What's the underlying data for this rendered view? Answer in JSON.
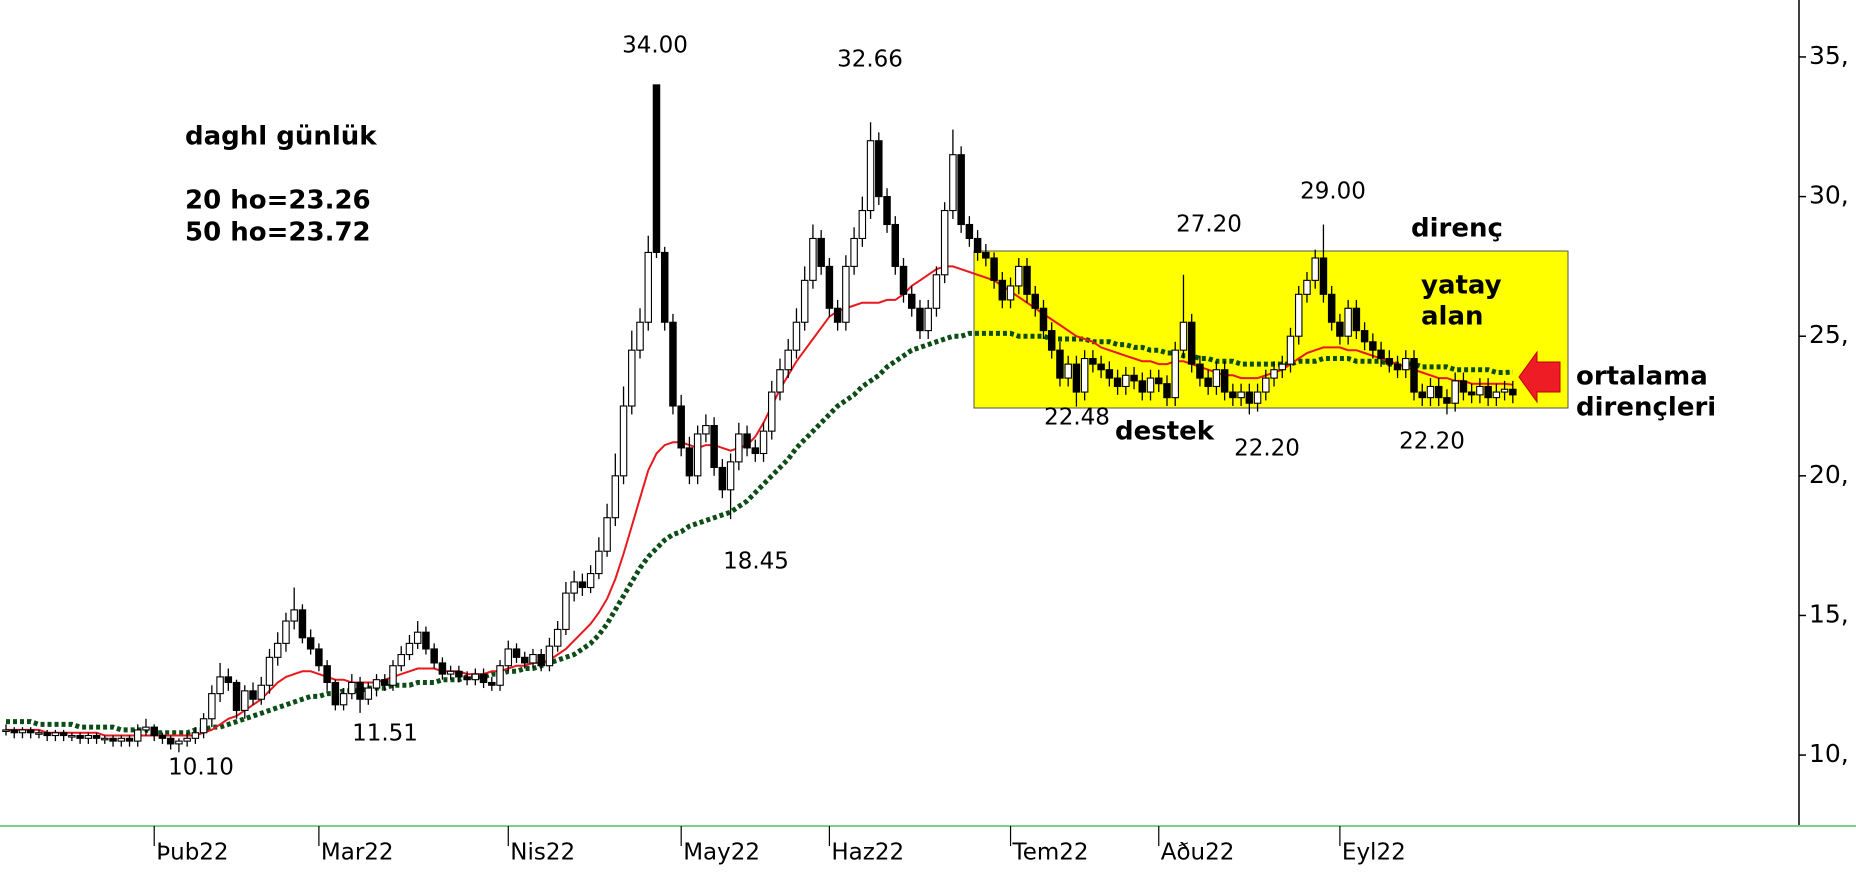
{
  "chart_data": {
    "type": "candlestick",
    "categories": [
      null,
      null,
      null,
      null,
      null,
      null,
      null,
      null,
      null,
      null,
      null,
      null,
      null,
      null,
      null,
      null,
      null,
      null,
      "Þub22",
      null,
      null,
      null,
      null,
      null,
      null,
      null,
      null,
      null,
      null,
      null,
      null,
      null,
      null,
      null,
      null,
      null,
      null,
      null,
      "Mar22",
      null,
      null,
      null,
      null,
      null,
      null,
      null,
      null,
      null,
      null,
      null,
      null,
      null,
      null,
      null,
      null,
      null,
      null,
      null,
      null,
      null,
      null,
      "Nis22",
      null,
      null,
      null,
      null,
      null,
      null,
      null,
      null,
      null,
      null,
      null,
      null,
      null,
      null,
      null,
      null,
      null,
      null,
      null,
      null,
      "May22",
      null,
      null,
      null,
      null,
      null,
      null,
      null,
      null,
      null,
      null,
      null,
      null,
      null,
      null,
      null,
      null,
      null,
      "Haz22",
      null,
      null,
      null,
      null,
      null,
      null,
      null,
      null,
      null,
      null,
      null,
      null,
      null,
      null,
      null,
      null,
      null,
      null,
      null,
      null,
      null,
      "Tem22",
      null,
      null,
      null,
      null,
      null,
      null,
      null,
      null,
      null,
      null,
      null,
      null,
      null,
      null,
      null,
      null,
      null,
      "Aðu22",
      null,
      null,
      null,
      null,
      null,
      null,
      null,
      null,
      null,
      null,
      null,
      null,
      null,
      null,
      null,
      null,
      null,
      null,
      null,
      null,
      null,
      "Eyl22",
      null,
      null,
      null,
      null,
      null,
      null,
      null,
      null,
      null,
      null,
      null,
      null,
      null,
      null,
      null,
      null,
      null,
      null,
      null,
      null,
      null
    ],
    "open": [
      10.9,
      10.9,
      10.8,
      10.9,
      10.8,
      10.8,
      10.7,
      10.8,
      10.7,
      10.7,
      10.6,
      10.7,
      10.6,
      10.6,
      10.5,
      10.6,
      10.5,
      10.9,
      11.0,
      10.7,
      10.6,
      10.4,
      10.5,
      10.6,
      10.8,
      11.3,
      12.2,
      12.8,
      12.6,
      11.6,
      12.3,
      12.0,
      12.5,
      13.5,
      14.0,
      14.8,
      15.2,
      14.2,
      13.8,
      13.2,
      12.6,
      11.8,
      12.2,
      12.6,
      12.0,
      12.4,
      12.7,
      12.5,
      13.2,
      13.6,
      14.0,
      14.4,
      13.8,
      13.3,
      12.9,
      13.0,
      12.8,
      12.7,
      12.9,
      12.6,
      12.5,
      13.2,
      13.8,
      13.5,
      13.3,
      13.6,
      13.2,
      13.9,
      14.5,
      15.8,
      16.2,
      16.0,
      16.5,
      17.3,
      18.5,
      20.0,
      22.5,
      24.5,
      25.5,
      34.0,
      28.0,
      25.5,
      22.5,
      21.0,
      20.0,
      21.5,
      21.8,
      20.3,
      19.5,
      20.5,
      21.5,
      21.0,
      20.8,
      21.6,
      23.0,
      23.8,
      24.5,
      25.5,
      27.0,
      28.5,
      27.5,
      26.0,
      25.5,
      27.5,
      28.5,
      29.5,
      32.0,
      30.0,
      29.0,
      27.5,
      26.5,
      26.0,
      25.2,
      26.0,
      27.2,
      29.5,
      31.5,
      29.0,
      28.5,
      28.0,
      27.8,
      27.0,
      26.3,
      26.8,
      27.5,
      26.5,
      26.0,
      25.2,
      24.5,
      23.5,
      24.0,
      23.0,
      24.2,
      24.0,
      23.8,
      23.5,
      23.2,
      23.6,
      23.4,
      23.0,
      23.5,
      23.3,
      22.8,
      24.5,
      25.5,
      24.0,
      23.5,
      23.2,
      23.8,
      23.0,
      22.8,
      23.0,
      22.6,
      23.0,
      23.5,
      23.8,
      24.0,
      25.0,
      26.5,
      27.0,
      27.8,
      26.5,
      25.5,
      25.0,
      26.0,
      25.2,
      24.8,
      24.5,
      24.2,
      24.0,
      23.8,
      24.2,
      23.0,
      22.8,
      23.2,
      22.8,
      22.6,
      23.4,
      23.0,
      22.9,
      23.2,
      22.8,
      23.0,
      23.1
    ],
    "high": [
      11.1,
      11.0,
      11.0,
      11.0,
      10.9,
      10.9,
      10.9,
      10.9,
      10.8,
      10.8,
      10.8,
      10.8,
      10.7,
      10.7,
      10.7,
      10.7,
      11.1,
      11.3,
      11.1,
      10.8,
      10.7,
      10.6,
      10.8,
      11.0,
      11.5,
      12.5,
      13.3,
      13.1,
      12.7,
      12.5,
      12.6,
      12.8,
      13.8,
      14.4,
      15.1,
      16.0,
      15.4,
      14.5,
      14.0,
      13.4,
      12.7,
      12.4,
      12.9,
      12.8,
      12.6,
      12.9,
      12.9,
      13.4,
      13.9,
      14.3,
      14.8,
      14.6,
      14.0,
      13.5,
      13.2,
      13.2,
      13.0,
      13.1,
      13.1,
      12.8,
      13.4,
      14.1,
      14.0,
      13.7,
      13.8,
      13.8,
      14.2,
      14.8,
      16.2,
      16.6,
      16.5,
      16.8,
      17.8,
      19.0,
      20.8,
      23.2,
      25.2,
      26.0,
      28.6,
      34.0,
      28.2,
      25.8,
      22.9,
      21.4,
      21.8,
      22.2,
      22.1,
      20.6,
      20.8,
      21.9,
      21.8,
      21.3,
      21.9,
      23.4,
      24.2,
      24.9,
      26.0,
      27.5,
      29.0,
      28.8,
      27.8,
      26.3,
      27.9,
      28.9,
      30.0,
      32.66,
      32.3,
      30.3,
      29.3,
      27.8,
      26.8,
      26.3,
      26.3,
      27.5,
      29.8,
      32.4,
      31.8,
      29.3,
      28.8,
      28.3,
      28.0,
      27.3,
      27.1,
      27.8,
      27.8,
      26.8,
      26.3,
      25.5,
      24.8,
      24.3,
      24.3,
      24.5,
      24.5,
      24.3,
      24.1,
      23.8,
      23.9,
      23.9,
      23.7,
      23.8,
      23.8,
      23.6,
      24.8,
      27.2,
      25.8,
      24.3,
      23.8,
      24.1,
      24.1,
      23.3,
      23.3,
      23.3,
      23.3,
      23.8,
      24.1,
      24.3,
      25.3,
      26.8,
      27.3,
      28.1,
      29.0,
      26.8,
      25.8,
      26.3,
      26.3,
      25.5,
      25.1,
      24.8,
      24.5,
      24.3,
      24.5,
      24.5,
      23.3,
      23.5,
      23.5,
      23.1,
      23.7,
      23.7,
      23.3,
      23.5,
      23.5,
      23.3,
      23.4,
      23.4
    ],
    "low": [
      10.7,
      10.6,
      10.6,
      10.6,
      10.6,
      10.5,
      10.5,
      10.5,
      10.5,
      10.4,
      10.4,
      10.4,
      10.4,
      10.3,
      10.3,
      10.3,
      10.3,
      10.7,
      10.5,
      10.4,
      10.2,
      10.1,
      10.3,
      10.4,
      10.6,
      11.0,
      11.9,
      12.3,
      11.3,
      11.3,
      11.8,
      11.8,
      12.2,
      13.2,
      13.7,
      14.5,
      14.0,
      13.6,
      13.0,
      12.3,
      11.6,
      11.6,
      12.0,
      11.51,
      11.8,
      12.1,
      12.3,
      12.3,
      13.0,
      13.4,
      13.8,
      13.6,
      13.1,
      12.7,
      12.7,
      12.6,
      12.5,
      12.5,
      12.4,
      12.3,
      12.3,
      13.0,
      13.3,
      13.1,
      13.1,
      13.0,
      13.0,
      13.7,
      14.3,
      15.5,
      15.7,
      15.8,
      16.3,
      17.1,
      18.2,
      19.7,
      22.2,
      24.2,
      25.2,
      27.8,
      25.2,
      22.2,
      20.7,
      19.7,
      19.7,
      21.2,
      20.0,
      19.2,
      18.45,
      20.2,
      20.7,
      20.5,
      20.5,
      21.3,
      22.7,
      23.5,
      24.2,
      25.2,
      26.7,
      27.2,
      25.7,
      25.2,
      25.2,
      27.2,
      28.2,
      29.2,
      29.7,
      28.7,
      27.2,
      26.2,
      25.7,
      24.9,
      24.9,
      25.7,
      26.9,
      29.2,
      28.7,
      28.2,
      27.7,
      27.5,
      26.7,
      26.0,
      26.0,
      26.5,
      26.2,
      25.7,
      24.9,
      24.2,
      23.2,
      23.2,
      22.48,
      22.7,
      23.7,
      23.5,
      23.2,
      22.9,
      22.9,
      23.1,
      22.7,
      22.7,
      23.0,
      22.5,
      22.5,
      24.2,
      23.7,
      23.2,
      22.9,
      22.9,
      22.7,
      22.5,
      22.5,
      22.2,
      22.3,
      22.7,
      23.2,
      23.5,
      23.7,
      24.7,
      26.2,
      26.7,
      26.2,
      25.2,
      24.7,
      24.7,
      24.9,
      24.5,
      24.2,
      23.9,
      23.7,
      23.5,
      23.5,
      22.7,
      22.5,
      22.5,
      22.5,
      22.2,
      22.3,
      22.7,
      22.6,
      22.6,
      22.5,
      22.5,
      22.7,
      22.6
    ],
    "close": [
      10.9,
      10.8,
      10.9,
      10.8,
      10.8,
      10.7,
      10.8,
      10.7,
      10.7,
      10.6,
      10.7,
      10.6,
      10.6,
      10.5,
      10.6,
      10.5,
      10.9,
      11.0,
      10.7,
      10.6,
      10.4,
      10.5,
      10.6,
      10.8,
      11.3,
      12.2,
      12.8,
      12.6,
      11.6,
      12.3,
      12.0,
      12.5,
      13.5,
      14.0,
      14.8,
      15.2,
      14.2,
      13.8,
      13.2,
      12.6,
      11.8,
      12.2,
      12.6,
      12.0,
      12.4,
      12.7,
      12.5,
      13.2,
      13.6,
      14.0,
      14.4,
      13.8,
      13.3,
      12.9,
      13.0,
      12.8,
      12.7,
      12.9,
      12.6,
      12.5,
      13.2,
      13.8,
      13.5,
      13.3,
      13.6,
      13.2,
      13.9,
      14.5,
      15.8,
      16.2,
      16.0,
      16.5,
      17.3,
      18.5,
      20.0,
      22.5,
      24.5,
      25.5,
      28.0,
      28.0,
      25.5,
      22.5,
      21.0,
      20.0,
      21.5,
      21.8,
      20.3,
      19.5,
      20.5,
      21.5,
      21.0,
      20.8,
      21.6,
      23.0,
      23.8,
      24.5,
      25.5,
      27.0,
      28.5,
      27.5,
      26.0,
      25.5,
      27.5,
      28.5,
      29.5,
      32.0,
      30.0,
      29.0,
      27.5,
      26.5,
      26.0,
      25.2,
      26.0,
      27.2,
      29.5,
      31.5,
      29.0,
      28.5,
      28.0,
      27.8,
      27.0,
      26.3,
      26.8,
      27.5,
      26.5,
      26.0,
      25.2,
      24.5,
      23.5,
      24.0,
      23.0,
      24.2,
      24.0,
      23.8,
      23.5,
      23.2,
      23.6,
      23.4,
      23.0,
      23.5,
      23.3,
      22.8,
      24.5,
      25.5,
      24.0,
      23.5,
      23.2,
      23.8,
      23.0,
      22.8,
      23.0,
      22.6,
      23.0,
      23.5,
      23.8,
      24.0,
      25.0,
      26.5,
      27.0,
      27.8,
      26.5,
      25.5,
      25.0,
      26.0,
      25.2,
      24.8,
      24.5,
      24.2,
      24.0,
      23.8,
      24.2,
      23.0,
      22.8,
      23.2,
      22.8,
      22.6,
      23.4,
      23.0,
      22.9,
      23.2,
      22.8,
      23.0,
      23.1,
      22.9
    ],
    "lines": [
      {
        "color": "#e8191e",
        "style": "solid",
        "values": [
          10.9,
          10.9,
          10.9,
          10.9,
          10.9,
          10.8,
          10.8,
          10.8,
          10.8,
          10.8,
          10.8,
          10.8,
          10.7,
          10.7,
          10.7,
          10.7,
          10.7,
          10.7,
          10.7,
          10.7,
          10.7,
          10.7,
          10.7,
          10.7,
          10.8,
          10.9,
          11.1,
          11.3,
          11.4,
          11.6,
          11.8,
          12.0,
          12.3,
          12.6,
          12.8,
          12.9,
          13.0,
          13.0,
          12.9,
          12.8,
          12.7,
          12.7,
          12.6,
          12.6,
          12.6,
          12.6,
          12.7,
          12.8,
          12.9,
          13.0,
          13.1,
          13.1,
          13.1,
          13.0,
          13.0,
          13.0,
          12.9,
          12.9,
          12.9,
          13.0,
          13.0,
          13.1,
          13.2,
          13.2,
          13.3,
          13.3,
          13.4,
          13.6,
          13.8,
          14.1,
          14.4,
          14.7,
          15.1,
          15.6,
          16.3,
          17.2,
          18.2,
          19.2,
          20.2,
          20.8,
          21.1,
          21.2,
          21.2,
          21.1,
          21.0,
          21.1,
          21.1,
          21.0,
          20.9,
          21.0,
          21.1,
          21.4,
          21.9,
          22.5,
          23.1,
          23.6,
          24.1,
          24.5,
          24.9,
          25.3,
          25.7,
          25.9,
          26.0,
          26.1,
          26.2,
          26.2,
          26.2,
          26.3,
          26.3,
          26.5,
          26.8,
          27.0,
          27.2,
          27.4,
          27.5,
          27.5,
          27.4,
          27.3,
          27.2,
          27.1,
          27.0,
          26.8,
          26.6,
          26.4,
          26.2,
          26.0,
          25.8,
          25.6,
          25.4,
          25.2,
          25.0,
          24.9,
          24.8,
          24.6,
          24.5,
          24.4,
          24.3,
          24.2,
          24.1,
          24.1,
          24.0,
          24.0,
          24.1,
          24.1,
          24.0,
          23.9,
          23.8,
          23.7,
          23.6,
          23.6,
          23.5,
          23.5,
          23.5,
          23.6,
          23.7,
          23.8,
          24.0,
          24.2,
          24.4,
          24.5,
          24.6,
          24.6,
          24.6,
          24.5,
          24.5,
          24.4,
          24.3,
          24.2,
          24.1,
          24.0,
          23.9,
          23.8,
          23.7,
          23.6,
          23.5,
          23.5,
          23.4,
          23.4,
          23.3,
          23.3,
          23.3,
          23.3,
          23.3,
          23.26
        ]
      },
      {
        "color": "#0b4d16",
        "style": "dotted",
        "values": [
          11.2,
          11.2,
          11.2,
          11.2,
          11.1,
          11.1,
          11.1,
          11.1,
          11.1,
          11.0,
          11.0,
          11.0,
          11.0,
          11.0,
          10.9,
          10.9,
          10.9,
          10.9,
          10.8,
          10.8,
          10.8,
          10.8,
          10.8,
          10.9,
          10.9,
          11.0,
          11.0,
          11.1,
          11.2,
          11.3,
          11.4,
          11.5,
          11.6,
          11.7,
          11.8,
          11.9,
          12.0,
          12.1,
          12.1,
          12.2,
          12.2,
          12.3,
          12.3,
          12.3,
          12.4,
          12.4,
          12.4,
          12.5,
          12.5,
          12.5,
          12.6,
          12.6,
          12.6,
          12.7,
          12.7,
          12.7,
          12.8,
          12.8,
          12.8,
          12.9,
          12.9,
          13.0,
          13.0,
          13.1,
          13.1,
          13.2,
          13.3,
          13.4,
          13.5,
          13.6,
          13.8,
          14.0,
          14.3,
          14.7,
          15.2,
          15.7,
          16.2,
          16.7,
          17.1,
          17.4,
          17.7,
          17.9,
          18.0,
          18.2,
          18.3,
          18.4,
          18.5,
          18.6,
          18.7,
          18.9,
          19.1,
          19.4,
          19.7,
          20.0,
          20.3,
          20.6,
          21.0,
          21.3,
          21.6,
          21.9,
          22.2,
          22.5,
          22.7,
          22.9,
          23.2,
          23.4,
          23.6,
          23.9,
          24.1,
          24.3,
          24.5,
          24.6,
          24.7,
          24.8,
          24.9,
          25.0,
          25.0,
          25.1,
          25.1,
          25.1,
          25.1,
          25.1,
          25.1,
          25.0,
          25.0,
          25.0,
          25.0,
          24.9,
          24.9,
          24.9,
          24.9,
          24.9,
          24.8,
          24.8,
          24.8,
          24.7,
          24.7,
          24.6,
          24.6,
          24.5,
          24.5,
          24.4,
          24.4,
          24.3,
          24.3,
          24.2,
          24.2,
          24.1,
          24.1,
          24.1,
          24.0,
          24.0,
          24.0,
          24.0,
          24.0,
          24.0,
          24.0,
          24.1,
          24.1,
          24.1,
          24.2,
          24.2,
          24.2,
          24.2,
          24.1,
          24.1,
          24.1,
          24.1,
          24.0,
          24.0,
          24.0,
          24.0,
          23.9,
          23.9,
          23.9,
          23.9,
          23.8,
          23.8,
          23.8,
          23.8,
          23.8,
          23.7,
          23.7,
          23.72
        ]
      }
    ],
    "ylim": [
      7.46,
      37.04
    ],
    "yticks": [
      {
        "value": 10,
        "label": "10,"
      },
      {
        "value": 15,
        "label": "15,"
      },
      {
        "value": 20,
        "label": "20,"
      },
      {
        "value": 25,
        "label": "25,"
      },
      {
        "value": 30,
        "label": "30,"
      },
      {
        "value": 35,
        "label": "35,"
      }
    ],
    "up_color": "#ffffff",
    "down_color": "#000000",
    "annotations": [
      {
        "text": "daghl günlük"
      },
      {
        "text": "20 ho=23.26"
      },
      {
        "text": "50 ho=23.72"
      },
      {
        "text": "34.00"
      },
      {
        "text": "32.66"
      },
      {
        "text": "27.20"
      },
      {
        "text": "29.00"
      },
      {
        "text": "22.48"
      },
      {
        "text": "22.20"
      },
      {
        "text": "22.20"
      },
      {
        "text": "18.45"
      },
      {
        "text": "11.51"
      },
      {
        "text": "10.10"
      },
      {
        "text": "direnç"
      },
      {
        "text": "yatay"
      },
      {
        "text": "alan"
      },
      {
        "text": "destek"
      },
      {
        "text": "ortalama"
      },
      {
        "text": "dirençleri"
      }
    ]
  }
}
